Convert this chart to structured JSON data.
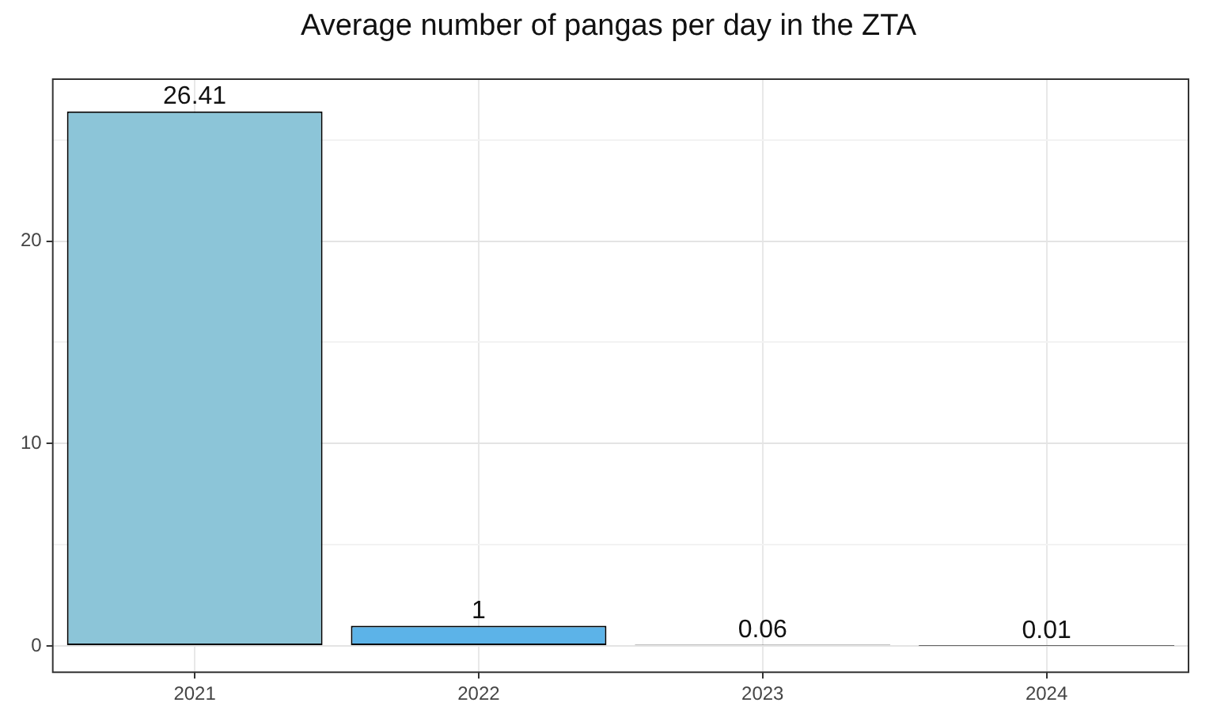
{
  "chart_data": {
    "type": "bar",
    "title": "Average number of pangas per day in the ZTA",
    "categories": [
      "2021",
      "2022",
      "2023",
      "2024"
    ],
    "values": [
      26.41,
      1,
      0.06,
      0.01
    ],
    "colors": [
      "#8cc5d8",
      "#5cb3e8",
      "#000000",
      "#000000"
    ],
    "ylim": [
      -1.3,
      28
    ],
    "yticks": [
      0,
      {
        "value": 5,
        "label": null
      },
      10,
      {
        "value": 15,
        "label": null
      },
      20,
      {
        "value": 25,
        "label": null
      }
    ],
    "grid": true,
    "data_labels": true,
    "legend": false
  }
}
